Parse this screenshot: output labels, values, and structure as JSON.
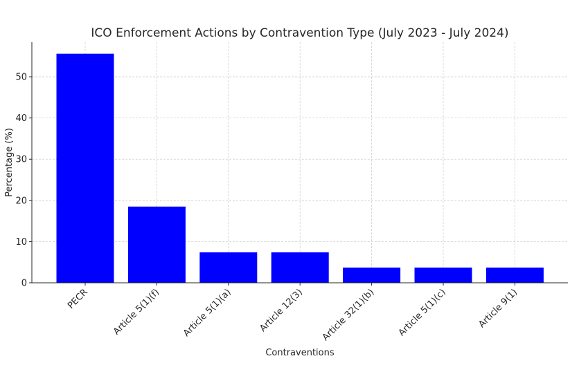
{
  "chart_data": {
    "type": "bar",
    "title": "ICO Enforcement Actions by Contravention Type (July 2023 - July 2024)",
    "xlabel": "Contraventions",
    "ylabel": "Percentage (%)",
    "categories": [
      "PECR",
      "Article 5(1)(f)",
      "Article 5(1)(a)",
      "Article 12(3)",
      "Article 32(1)(b)",
      "Article 5(1)(c)",
      "Article 9(1)"
    ],
    "values": [
      55.6,
      18.5,
      7.4,
      7.4,
      3.7,
      3.7,
      3.7
    ],
    "ylim": [
      0,
      58.4
    ],
    "yticks": [
      0,
      10,
      20,
      30,
      40,
      50
    ],
    "bar_color": "#0000ff",
    "grid": true
  }
}
